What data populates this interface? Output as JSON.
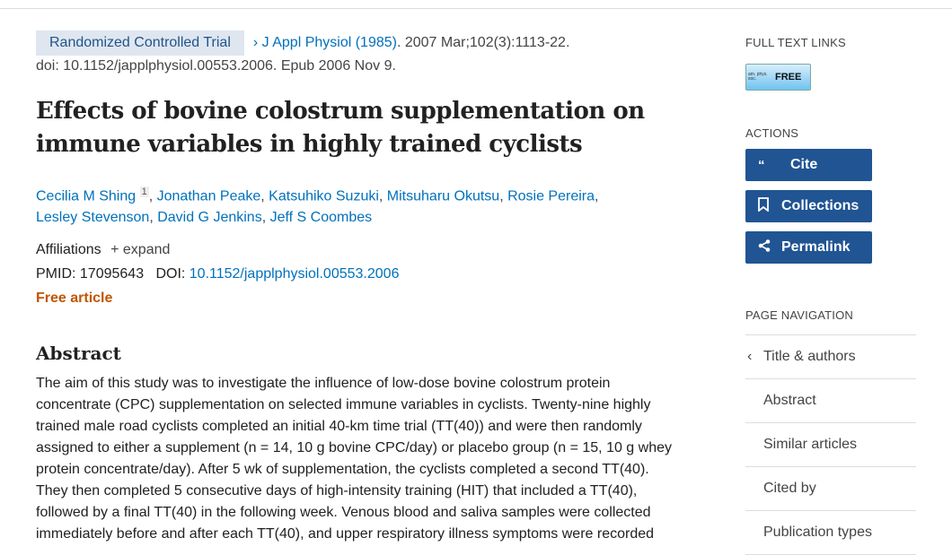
{
  "citation": {
    "badge": "Randomized Controlled Trial",
    "journal": "J Appl Physiol (1985)",
    "details": ". 2007 Mar;102(3):1113-22.",
    "doi_line": "doi: 10.1152/japplphysiol.00553.2006. Epub 2006 Nov 9."
  },
  "title": "Effects of bovine colostrum supplementation on immune variables in highly trained cyclists",
  "authors": [
    "Cecilia M Shing",
    "Jonathan Peake",
    "Katsuhiko Suzuki",
    "Mitsuharu Okutsu",
    "Rosie Pereira",
    "Lesley Stevenson",
    "David G Jenkins",
    "Jeff S Coombes"
  ],
  "author_sup": "1",
  "affiliations_label": "Affiliations",
  "expand_label": "expand",
  "pmid_label": "PMID:",
  "pmid": "17095643",
  "doi_label": "DOI:",
  "doi": "10.1152/japplphysiol.00553.2006",
  "free_article": "Free article",
  "abstract_heading": "Abstract",
  "abstract": "The aim of this study was to investigate the influence of low-dose bovine colostrum protein concentrate (CPC) supplementation on selected immune variables in cyclists. Twenty-nine highly trained male road cyclists completed an initial 40-km time trial (TT(40)) and were then randomly assigned to either a supplement (n = 14, 10 g bovine CPC/day) or placebo group (n = 15, 10 g whey protein concentrate/day). After 5 wk of supplementation, the cyclists completed a second TT(40). They then completed 5 consecutive days of high-intensity training (HIT) that included a TT(40), followed by a final TT(40) in the following week. Venous blood and saliva samples were collected immediately before and after each TT(40), and upper respiratory illness symptoms were recorded",
  "sidebar": {
    "full_text_heading": "FULL TEXT LINKS",
    "logo_text": "american physiological society",
    "logo_free": "FREE",
    "actions_heading": "ACTIONS",
    "actions": [
      {
        "label": "Cite",
        "icon": "quote-icon"
      },
      {
        "label": "Collections",
        "icon": "bookmark-icon"
      },
      {
        "label": "Permalink",
        "icon": "share-icon"
      }
    ],
    "nav_heading": "PAGE NAVIGATION",
    "nav": [
      "Title & authors",
      "Abstract",
      "Similar articles",
      "Cited by",
      "Publication types"
    ]
  },
  "colors": {
    "accent": "#205493",
    "link": "#0071bc",
    "free": "#c05600"
  }
}
